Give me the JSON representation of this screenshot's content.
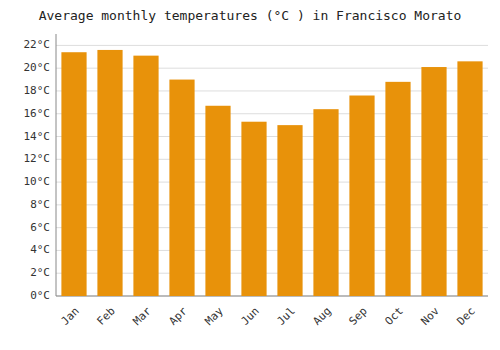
{
  "chart_data": {
    "type": "bar",
    "title": "Average monthly temperatures (°C ) in Francisco Morato",
    "categories": [
      "Jan",
      "Feb",
      "Mar",
      "Apr",
      "May",
      "Jun",
      "Jul",
      "Aug",
      "Sep",
      "Oct",
      "Nov",
      "Dec"
    ],
    "values": [
      21.4,
      21.6,
      21.1,
      19.0,
      16.7,
      15.3,
      15.0,
      16.4,
      17.6,
      18.8,
      20.1,
      20.6
    ],
    "color": "#E8920A",
    "ylim": [
      0,
      23
    ],
    "yticks": [
      {
        "value": 0,
        "label": "0°C"
      },
      {
        "value": 2,
        "label": "2°C"
      },
      {
        "value": 4,
        "label": "4°C"
      },
      {
        "value": 6,
        "label": "6°C"
      },
      {
        "value": 8,
        "label": "8°C"
      },
      {
        "value": 10,
        "label": "10°C"
      },
      {
        "value": 12,
        "label": "12°C"
      },
      {
        "value": 14,
        "label": "14°C"
      },
      {
        "value": 16,
        "label": "16°C"
      },
      {
        "value": 18,
        "label": "18°C"
      },
      {
        "value": 20,
        "label": "20°C"
      },
      {
        "value": 22,
        "label": "22°C"
      }
    ],
    "grid": true
  }
}
